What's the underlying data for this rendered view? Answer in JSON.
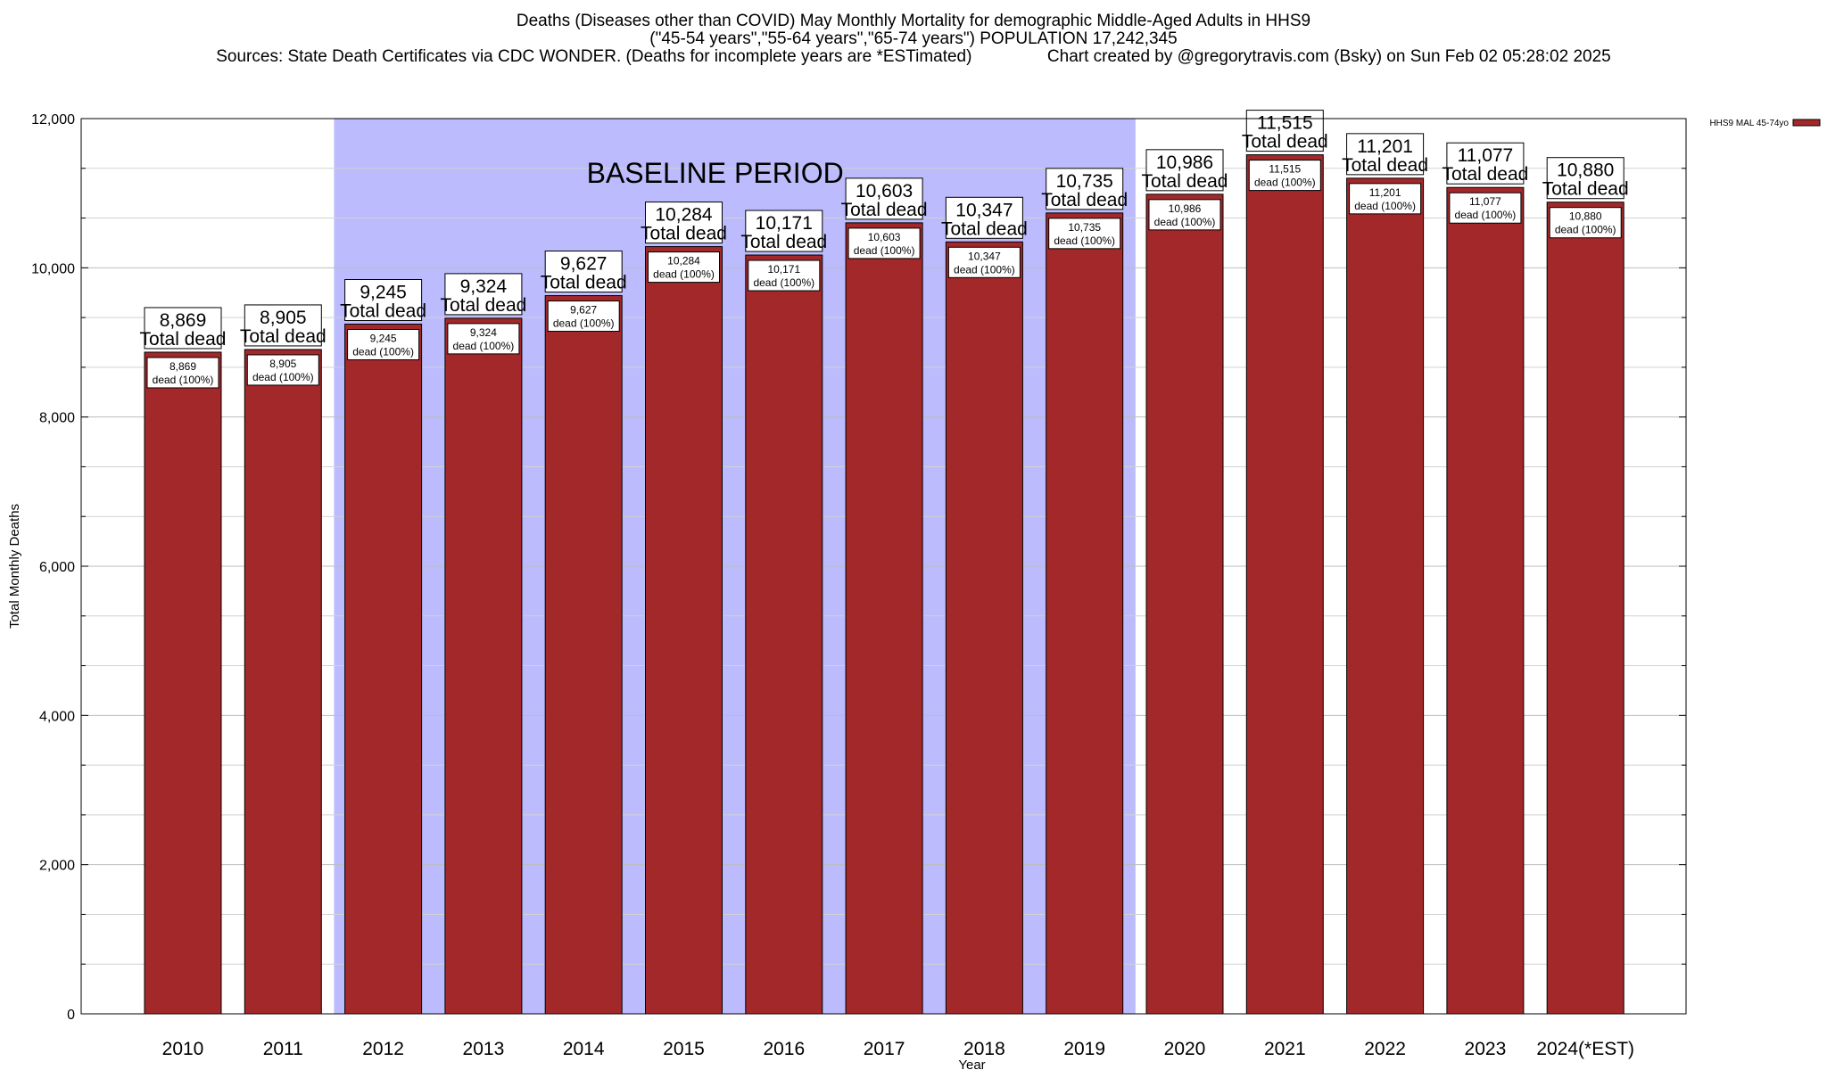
{
  "title": {
    "line1": "Deaths (Diseases other than COVID) May Monthly Mortality for demographic Middle-Aged Adults in HHS9",
    "line2": "(\"45-54 years\",\"55-64 years\",\"65-74 years\") POPULATION 17,242,345",
    "line3": "Sources: State Death Certificates via CDC WONDER. (Deaths for incomplete years are *ESTimated)                Chart created by @gregorytravis.com (Bsky) on Sun Feb 02 05:28:02 2025"
  },
  "chart_data": {
    "type": "bar",
    "categories": [
      "2010",
      "2011",
      "2012",
      "2013",
      "2014",
      "2015",
      "2016",
      "2017",
      "2018",
      "2019",
      "2020",
      "2021",
      "2022",
      "2023",
      "2024(*EST)"
    ],
    "series": [
      {
        "name": "HHS9 MAL 45-74yo",
        "values": [
          8869,
          8905,
          9245,
          9324,
          9627,
          10284,
          10171,
          10603,
          10347,
          10735,
          10986,
          11515,
          11201,
          11077,
          10880
        ],
        "color": "#a3282a"
      }
    ],
    "top_labels": [
      "8,869",
      "8,905",
      "9,245",
      "9,324",
      "9,627",
      "10,284",
      "10,171",
      "10,603",
      "10,347",
      "10,735",
      "10,986",
      "11,515",
      "11,201",
      "11,077",
      "10,880"
    ],
    "top_label_suffix": "Total dead",
    "inner_label_suffix": "dead (100%)",
    "xlabel": "Year",
    "ylabel": "Total Monthly Deaths",
    "ylim": [
      0,
      12000
    ],
    "yticks": [
      0,
      2000,
      4000,
      6000,
      8000,
      10000,
      12000
    ],
    "ytick_labels": [
      "0",
      "2,000",
      "4,000",
      "6,000",
      "8,000",
      "10,000",
      "12,000"
    ],
    "grid": true,
    "legend_position": "top-right",
    "annotation": {
      "text": "BASELINE PERIOD",
      "start_category": "2012",
      "end_category": "2019",
      "color": "#bbbbfd"
    }
  }
}
